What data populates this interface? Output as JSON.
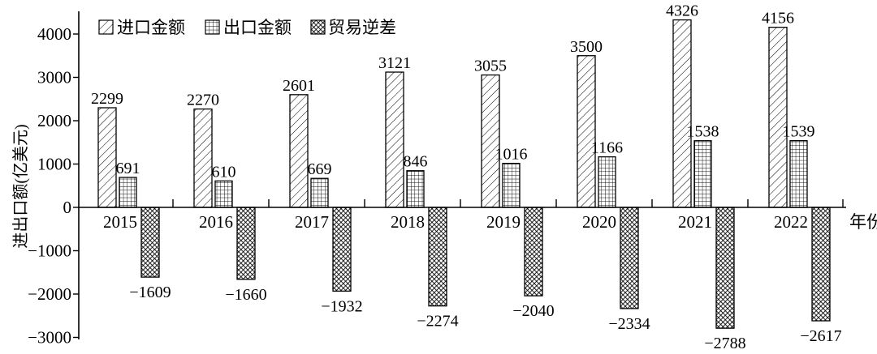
{
  "figure": {
    "background": "#ffffff",
    "ink_color": "#000000"
  },
  "chart_data": {
    "type": "bar",
    "title": "",
    "categories": [
      "2015",
      "2016",
      "2017",
      "2018",
      "2019",
      "2020",
      "2021",
      "2022"
    ],
    "series": [
      {
        "name": "进口金额",
        "pattern": "diagonal-hatch",
        "values": [
          2299,
          2270,
          2601,
          3121,
          3055,
          3500,
          4326,
          4156
        ]
      },
      {
        "name": "出口金额",
        "pattern": "square-grid",
        "values": [
          691,
          610,
          669,
          846,
          1016,
          1166,
          1538,
          1539
        ]
      },
      {
        "name": "贸易逆差",
        "pattern": "diagonal-crosshatch",
        "values": [
          -1609,
          -1660,
          -1932,
          -2274,
          -2040,
          -2334,
          -2788,
          -2617
        ]
      }
    ],
    "xlabel": "年份",
    "ylabel": "进出口额(亿美元)",
    "ylim": [
      -3000,
      4000
    ],
    "ytick_step": 1000,
    "grid": false,
    "legend_position": "top",
    "bar_labels_shown": true
  }
}
